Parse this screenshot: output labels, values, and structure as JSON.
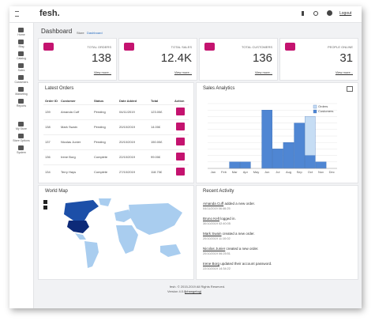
{
  "brand": "fesh.",
  "topbar": {
    "logout": "Logout"
  },
  "sidebar": [
    "Home",
    "Blog",
    "Catalog",
    "Sales",
    "Customers",
    "Marketing",
    "Reports",
    "My Store",
    "Store Options",
    "System"
  ],
  "page": {
    "title": "Dashboard",
    "breadcrumb": [
      "Store",
      "Dashboard"
    ]
  },
  "stats": [
    {
      "label": "TOTAL ORDERS",
      "value": "138",
      "link": "View more..."
    },
    {
      "label": "TOTAL SALES",
      "value": "12.4K",
      "link": "View more..."
    },
    {
      "label": "TOTAL CUSTOMERS",
      "value": "136",
      "link": "View more..."
    },
    {
      "label": "PEOPLE ONLINE",
      "value": "31",
      "link": "View more..."
    }
  ],
  "orders": {
    "title": "Latest Orders",
    "columns": [
      "Order ID",
      "Customer",
      "Status",
      "Date Added",
      "Total",
      "Action"
    ],
    "rows": [
      [
        "139",
        "Amanda Cuff",
        "Pending",
        "04/11/2019",
        "123.00£"
      ],
      [
        "138",
        "Mark Swain",
        "Pending",
        "20/10/2019",
        "14.00£"
      ],
      [
        "137",
        "Nicolas Junier",
        "Pending",
        "20/10/2019",
        "150.00£"
      ],
      [
        "136",
        "Irene Borg",
        "Complete",
        "22/10/2019",
        "99.00£"
      ],
      [
        "134",
        "Terry Hays",
        "Complete",
        "27/10/2019",
        "118.70£"
      ]
    ]
  },
  "chart_data": {
    "type": "bar",
    "title": "Sales Analytics",
    "categories": [
      "Jan",
      "Feb",
      "Mar",
      "Apr",
      "May",
      "Jun",
      "Jul",
      "Aug",
      "Sep",
      "Oct",
      "Nov",
      "Dec"
    ],
    "series": [
      {
        "name": "Orders",
        "color": "#c6ddf4",
        "values": [
          0,
          0,
          1,
          1,
          0,
          9,
          3,
          4,
          7,
          8,
          1,
          0
        ]
      },
      {
        "name": "Customers",
        "color": "#4f86d3",
        "values": [
          0,
          0,
          1,
          1,
          0,
          9,
          3,
          4,
          7,
          2,
          1,
          0
        ]
      }
    ],
    "ylim": [
      0,
      10
    ],
    "yticks": [
      0,
      1,
      2,
      3,
      4,
      5,
      6,
      7,
      8,
      9,
      10
    ],
    "grid": true,
    "legend": "top-right"
  },
  "map": {
    "title": "World Map"
  },
  "activity": {
    "title": "Recent Activity",
    "items": [
      {
        "name": "Amanda Cuff",
        "action": "added a new order.",
        "date": "04/11/2019 06:46:25"
      },
      {
        "name": "Bruno Kelt",
        "action": "logged in.",
        "date": "30/10/2019 02:40:05"
      },
      {
        "name": "Mark Swain",
        "action": "created a new order.",
        "date": "20/10/2019 11:10:02"
      },
      {
        "name": "Nicolas Junier",
        "action": "created a new order.",
        "date": "20/10/2019 06:25:51"
      },
      {
        "name": "Irene Borg",
        "action": "updated their account password.",
        "date": "22/10/2019 14:34:22"
      }
    ]
  },
  "footer": {
    "line1": "fesh. © 2015-2019 All Rights Reserved.",
    "version": "Version 4.0.0",
    "changelog": "(changelog)"
  }
}
